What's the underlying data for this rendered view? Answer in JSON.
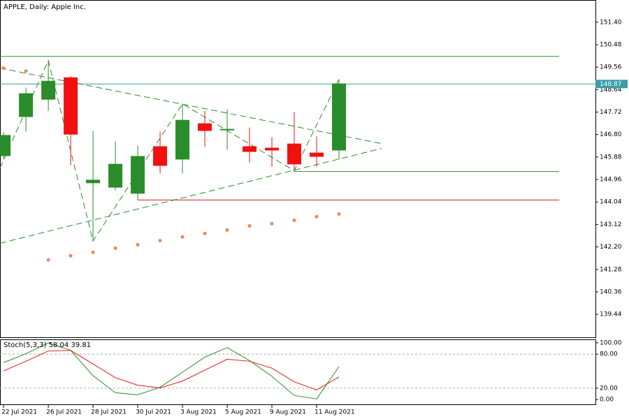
{
  "chart_data": [
    {
      "type": "candlestick",
      "title": "APPLE, Daily:  Apple Inc.",
      "categories": [
        "22 Jul 2021",
        null,
        "26 Jul 2021",
        null,
        "28 Jul 2021",
        null,
        "30 Jul 2021",
        null,
        "3 Aug 2021",
        null,
        "5 Aug 2021",
        null,
        "9 Aug 2021",
        null,
        "11 Aug 2021",
        null
      ],
      "open": [
        145.92,
        147.52,
        148.23,
        149.14,
        144.81,
        144.63,
        144.38,
        146.32,
        145.78,
        147.26,
        146.98,
        146.32,
        146.26,
        146.43,
        146.06,
        146.15
      ],
      "high": [
        146.9,
        148.72,
        149.83,
        149.2,
        146.95,
        146.52,
        146.35,
        146.92,
        148.06,
        147.77,
        147.83,
        147.09,
        146.69,
        147.72,
        146.72,
        149.06
      ],
      "low": [
        145.8,
        146.92,
        147.77,
        145.55,
        142.44,
        144.52,
        144.12,
        145.21,
        145.21,
        146.29,
        146.18,
        145.66,
        145.49,
        145.32,
        145.49,
        145.78
      ],
      "close": [
        146.78,
        148.49,
        149.0,
        146.8,
        144.95,
        145.6,
        145.92,
        145.52,
        147.4,
        146.95,
        147.03,
        146.09,
        146.15,
        145.58,
        145.89,
        148.89
      ],
      "up_color": "#2a8c2a",
      "down_color": "#f01010",
      "sar": {
        "color": "#f4845a",
        "values": [
          149.52,
          149.4,
          141.67,
          141.84,
          141.98,
          142.15,
          142.29,
          142.46,
          142.61,
          142.75,
          142.89,
          143.06,
          143.15,
          143.29,
          143.44,
          143.55
        ]
      },
      "zigzag": {
        "color": "#2a8c2a",
        "x": [
          -0.16,
          2,
          4,
          8,
          13,
          15
        ],
        "values": [
          145.43,
          149.83,
          142.44,
          148.06,
          145.32,
          149.06
        ]
      },
      "trendlines": [
        {
          "color": "#2a8c2a",
          "x": [
            -0.16,
            16.9
          ],
          "values": [
            149.52,
            146.43
          ]
        },
        {
          "color": "#2a8c2a",
          "x": [
            -0.16,
            16.9
          ],
          "values": [
            142.35,
            146.23
          ]
        }
      ],
      "hlines": [
        {
          "value": 150.0,
          "color": "#3a8a3a",
          "x": [
            -0.16,
            24.85
          ]
        },
        {
          "value": 144.12,
          "color": "#d02020",
          "x": [
            6,
            24.85
          ]
        },
        {
          "value": 145.29,
          "color": "#4a8a4a",
          "x": [
            13,
            24.85
          ]
        }
      ],
      "price_line": {
        "value": 148.87,
        "label": "148.87",
        "color": "#3a9ea5"
      },
      "xlim": [
        -0.16,
        26.47
      ],
      "ylim": [
        138.5,
        152.28
      ],
      "yticks": [
        {
          "value": 151.4,
          "label": "151.40"
        },
        {
          "value": 150.48,
          "label": "150.48"
        },
        {
          "value": 149.56,
          "label": "149.56"
        },
        {
          "value": 148.64,
          "label": "148.64"
        },
        {
          "value": 147.72,
          "label": "147.72"
        },
        {
          "value": 146.8,
          "label": "146.80"
        },
        {
          "value": 145.88,
          "label": "145.88"
        },
        {
          "value": 144.96,
          "label": "144.96"
        },
        {
          "value": 144.04,
          "label": "144.04"
        },
        {
          "value": 143.12,
          "label": "143.12"
        },
        {
          "value": 142.2,
          "label": "142.20"
        },
        {
          "value": 141.28,
          "label": "141.28"
        },
        {
          "value": 140.36,
          "label": "140.36"
        },
        {
          "value": 139.44,
          "label": "139.44"
        }
      ]
    },
    {
      "type": "line",
      "title": "Stoch(5,3,3) 58.04 39.81",
      "series": [
        {
          "color": "#2a8c2a",
          "values": [
            65.1,
            80.7,
            100.0,
            86.7,
            42.2,
            12.0,
            8.4,
            21.7,
            48.2,
            74.7,
            91.6,
            68.7,
            41.0,
            7.2,
            1.2,
            58.04
          ]
        },
        {
          "color": "#e01818",
          "values": [
            50.6,
            67.5,
            85.5,
            86.7,
            62.7,
            38.6,
            25.3,
            20.5,
            32.5,
            51.8,
            71.1,
            67.5,
            55.4,
            31.3,
            16.9,
            39.81
          ]
        }
      ],
      "levels": [
        80,
        20
      ],
      "ylim": [
        -8.4,
        104.8
      ],
      "yticks": [
        {
          "value": 100,
          "label": "100.00"
        },
        {
          "value": 80,
          "label": "80.00"
        },
        {
          "value": 20,
          "label": "20.00"
        },
        {
          "value": 0,
          "label": "0.00"
        }
      ]
    }
  ]
}
